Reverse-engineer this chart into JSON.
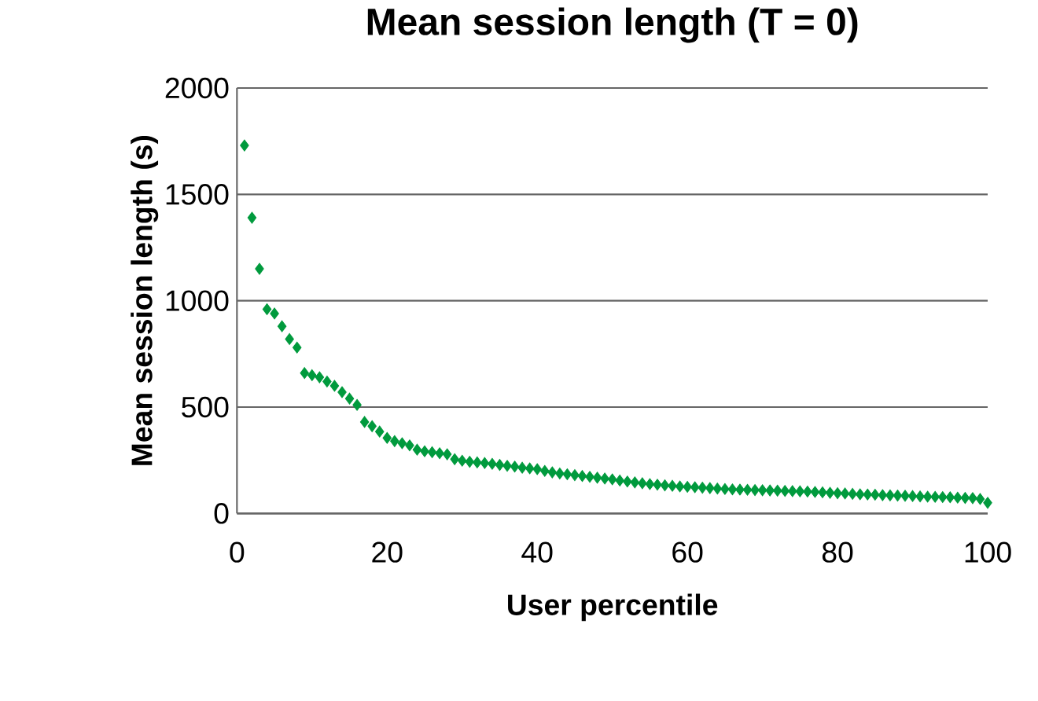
{
  "chart_data": {
    "type": "scatter",
    "title": "Mean session length (T = 0)",
    "xlabel": "User percentile",
    "ylabel": "Mean session length (s)",
    "x": [
      1,
      2,
      3,
      4,
      5,
      6,
      7,
      8,
      9,
      10,
      11,
      12,
      13,
      14,
      15,
      16,
      17,
      18,
      19,
      20,
      21,
      22,
      23,
      24,
      25,
      26,
      27,
      28,
      29,
      30,
      31,
      32,
      33,
      34,
      35,
      36,
      37,
      38,
      39,
      40,
      41,
      42,
      43,
      44,
      45,
      46,
      47,
      48,
      49,
      50,
      51,
      52,
      53,
      54,
      55,
      56,
      57,
      58,
      59,
      60,
      61,
      62,
      63,
      64,
      65,
      66,
      67,
      68,
      69,
      70,
      71,
      72,
      73,
      74,
      75,
      76,
      77,
      78,
      79,
      80,
      81,
      82,
      83,
      84,
      85,
      86,
      87,
      88,
      89,
      90,
      91,
      92,
      93,
      94,
      95,
      96,
      97,
      98,
      99,
      100
    ],
    "series": [
      {
        "color": "#009a3d",
        "values": [
          1730,
          1390,
          1150,
          960,
          940,
          880,
          820,
          780,
          660,
          650,
          640,
          620,
          600,
          570,
          540,
          510,
          430,
          410,
          385,
          355,
          340,
          330,
          320,
          300,
          292,
          288,
          283,
          278,
          255,
          248,
          243,
          240,
          237,
          233,
          228,
          224,
          220,
          215,
          212,
          208,
          200,
          193,
          188,
          184,
          180,
          176,
          172,
          168,
          164,
          160,
          155,
          150,
          146,
          142,
          138,
          135,
          132,
          130,
          127,
          125,
          123,
          121,
          119,
          117,
          115,
          113,
          112,
          111,
          110,
          109,
          108,
          107,
          106,
          105,
          104,
          103,
          101,
          99,
          97,
          95,
          94,
          92,
          90,
          89,
          88,
          86,
          85,
          84,
          83,
          82,
          80,
          79,
          78,
          77,
          76,
          74,
          73,
          72,
          68,
          50
        ]
      }
    ],
    "xlim": [
      0,
      100
    ],
    "ylim": [
      0,
      2000
    ],
    "xticks": [
      0,
      20,
      40,
      60,
      80,
      100
    ],
    "yticks": [
      0,
      500,
      1000,
      1500,
      2000
    ],
    "grid": "y",
    "marker": "diamond"
  }
}
